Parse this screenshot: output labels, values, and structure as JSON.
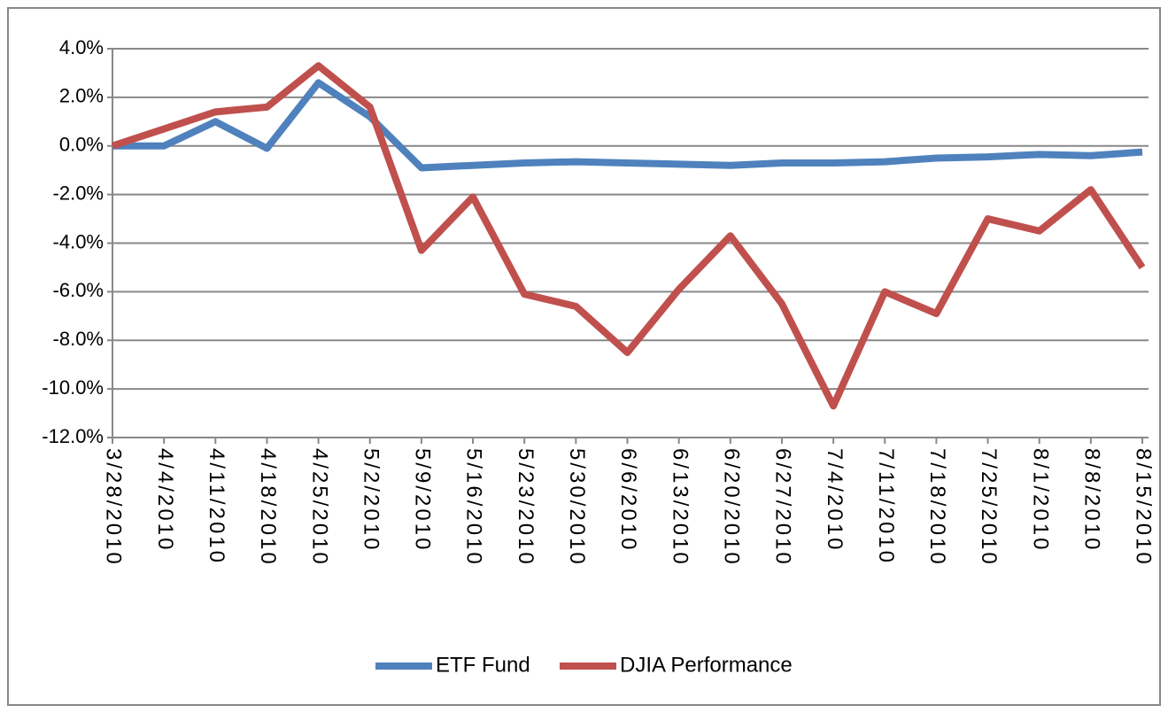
{
  "chart_data": {
    "type": "line",
    "categories": [
      "3/28/2010",
      "4/4/2010",
      "4/11/2010",
      "4/18/2010",
      "4/25/2010",
      "5/2/2010",
      "5/9/2010",
      "5/16/2010",
      "5/23/2010",
      "5/30/2010",
      "6/6/2010",
      "6/13/2010",
      "6/20/2010",
      "6/27/2010",
      "7/4/2010",
      "7/11/2010",
      "7/18/2010",
      "7/25/2010",
      "8/1/2010",
      "8/8/2010",
      "8/15/2010"
    ],
    "series": [
      {
        "name": "ETF Fund",
        "color": "#4f81bd",
        "values": [
          0,
          0,
          1.0,
          -0.1,
          2.6,
          1.2,
          -0.9,
          -0.8,
          -0.7,
          -0.65,
          -0.7,
          -0.75,
          -0.8,
          -0.7,
          -0.7,
          -0.65,
          -0.5,
          -0.45,
          -0.35,
          -0.4,
          -0.25
        ]
      },
      {
        "name": "DJIA Performance",
        "color": "#c0504d",
        "values": [
          0,
          0.7,
          1.4,
          1.6,
          3.3,
          1.6,
          -4.3,
          -2.1,
          -6.1,
          -6.6,
          -8.5,
          -5.9,
          -3.7,
          -6.5,
          -10.7,
          -6.0,
          -6.9,
          -3.0,
          -3.5,
          -1.8,
          -5.0
        ]
      }
    ],
    "ylim": [
      -12,
      4
    ],
    "yticks": [
      {
        "value": -12,
        "label": "-12.0%"
      },
      {
        "value": -10,
        "label": "-10.0%"
      },
      {
        "value": -8,
        "label": "-8.0%"
      },
      {
        "value": -6,
        "label": "-6.0%"
      },
      {
        "value": -4,
        "label": "-4.0%"
      },
      {
        "value": -2,
        "label": "-2.0%"
      },
      {
        "value": 0,
        "label": "0.0%"
      },
      {
        "value": 2,
        "label": "2.0%"
      },
      {
        "value": 4,
        "label": "4.0%"
      }
    ],
    "grid": true,
    "legend": "bottom"
  }
}
